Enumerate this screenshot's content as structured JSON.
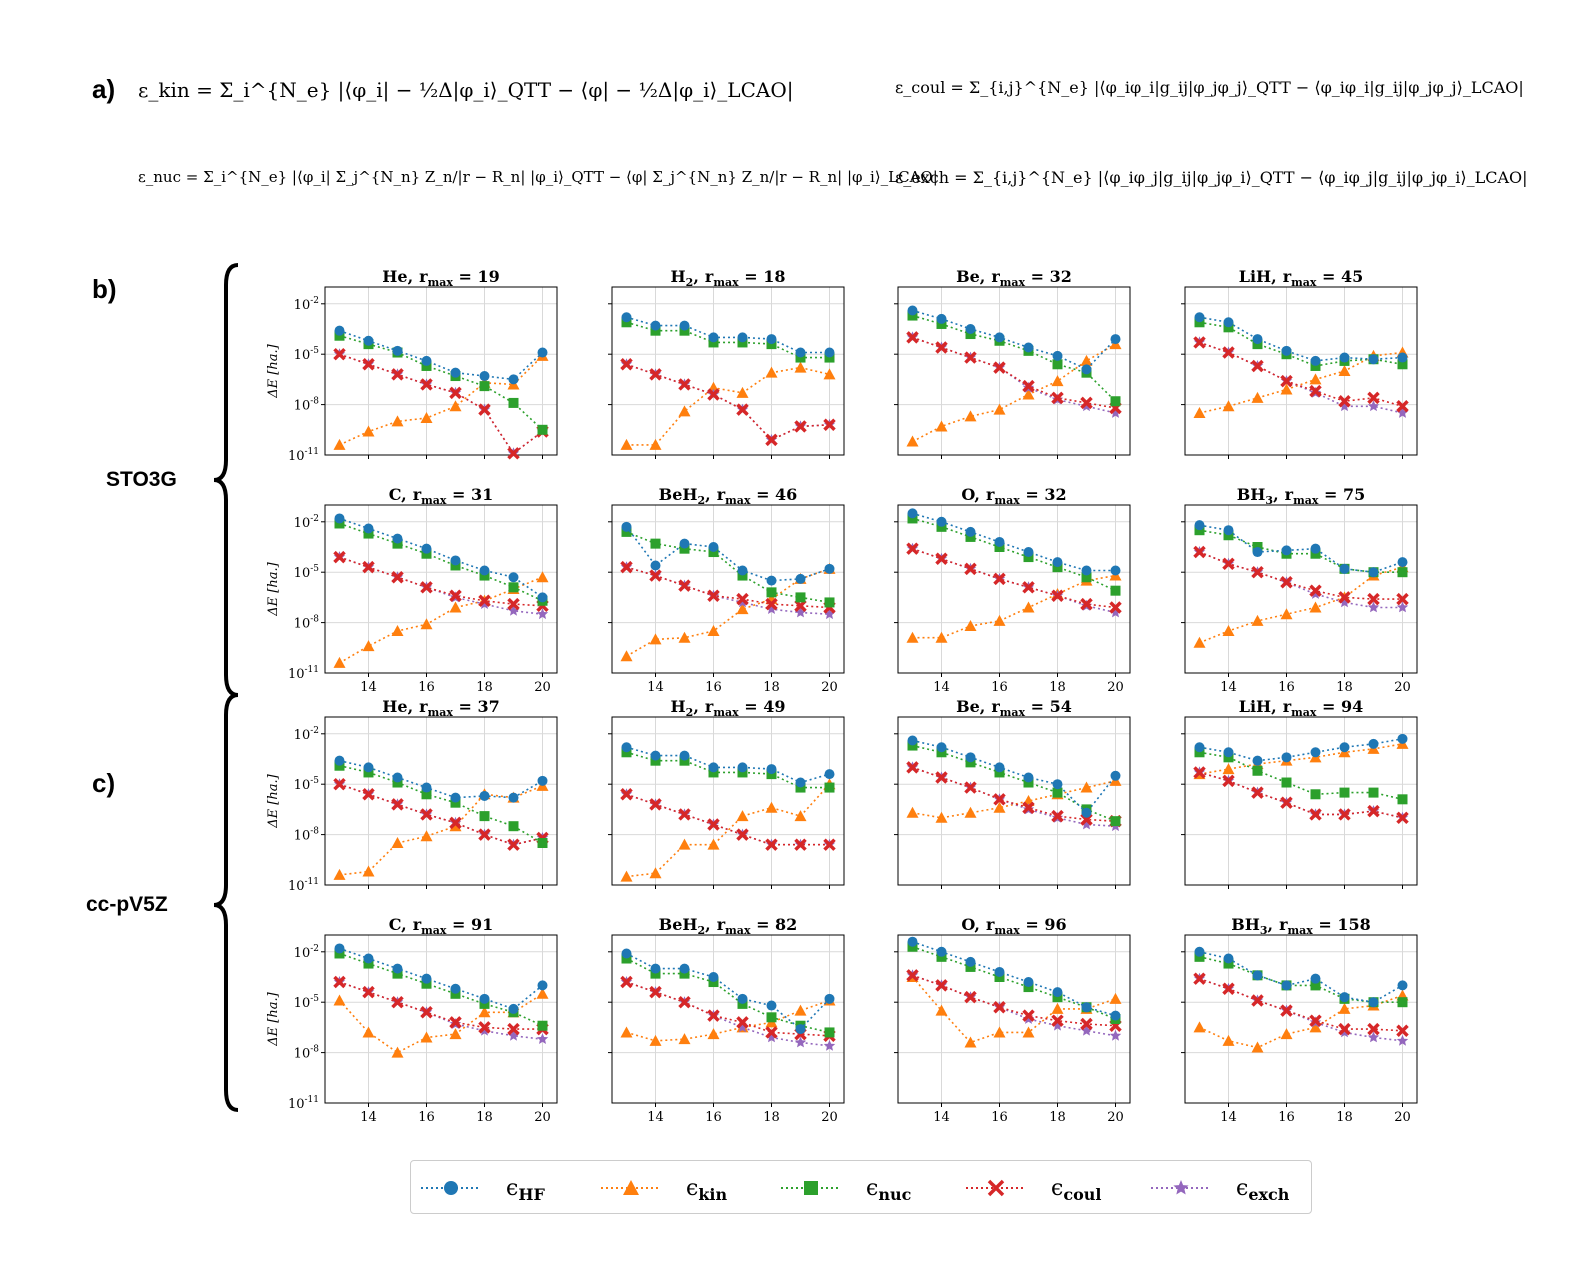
{
  "panel_labels": {
    "a": "a)",
    "b": "b)",
    "c": "c)"
  },
  "basis_sets": {
    "b": "STO3G",
    "c": "cc-pV5Z"
  },
  "equations": {
    "kin": "ε_kin = Σ_i^{N_e} |⟨φ_i| − ½Δ|φ_i⟩_QTT − ⟨φ| − ½Δ|φ_i⟩_LCAO|",
    "coul": "ε_coul = Σ_{i,j}^{N_e} |⟨φ_iφ_i|g_ij|φ_jφ_j⟩_QTT − ⟨φ_iφ_i|g_ij|φ_jφ_j⟩_LCAO|",
    "nuc": "ε_nuc = Σ_i^{N_e} |⟨φ_i| Σ_j^{N_n} Z_n/|r − R_n| |φ_i⟩_QTT − ⟨φ| Σ_j^{N_n} Z_n/|r − R_n| |φ_i⟩_LCAO|",
    "exch": "ε_exch = Σ_{i,j}^{N_e} |⟨φ_iφ_j|g_ij|φ_jφ_i⟩_QTT − ⟨φ_iφ_j|g_ij|φ_jφ_i⟩_LCAO|"
  },
  "ylabel": "ΔE [ha.]",
  "legend": [
    {
      "key": "HF",
      "label": "ϵ",
      "sub": "HF",
      "color": "#1f77b4",
      "marker": "circle"
    },
    {
      "key": "kin",
      "label": "ϵ",
      "sub": "kin",
      "color": "#ff7f0e",
      "marker": "triangle"
    },
    {
      "key": "nuc",
      "label": "ϵ",
      "sub": "nuc",
      "color": "#2ca02c",
      "marker": "square"
    },
    {
      "key": "coul",
      "label": "ϵ",
      "sub": "coul",
      "color": "#d62728",
      "marker": "x"
    },
    {
      "key": "exch",
      "label": "ϵ",
      "sub": "exch",
      "color": "#9467bd",
      "marker": "star"
    }
  ],
  "chart_data": [
    {
      "type": "line",
      "title": "He",
      "rmax": "19",
      "basis": "STO3G",
      "x": [
        13,
        14,
        15,
        16,
        17,
        18,
        19,
        20
      ],
      "ylim_exp": [
        -11,
        -1
      ],
      "series": {
        "HF": [
          -3.6,
          -4.2,
          -4.8,
          -5.4,
          -6.1,
          -6.3,
          -6.5,
          -4.9
        ],
        "kin": [
          -10.4,
          -9.6,
          -9.0,
          -8.8,
          -8.1,
          -6.7,
          -6.8,
          -5.1
        ],
        "nuc": [
          -3.9,
          -4.4,
          -4.9,
          -5.7,
          -6.3,
          -6.9,
          -7.9,
          -9.5
        ],
        "coul": [
          -5.0,
          -5.6,
          -6.2,
          -6.8,
          -7.3,
          -8.3,
          -10.9,
          -9.6
        ],
        "exch": [
          -5.0,
          -5.6,
          -6.2,
          -6.8,
          -7.3,
          -8.3,
          -10.9,
          -9.6
        ]
      }
    },
    {
      "type": "line",
      "title": "H",
      "sub": "2",
      "rmax": "18",
      "basis": "STO3G",
      "x": [
        13,
        14,
        15,
        16,
        17,
        18,
        19,
        20
      ],
      "ylim_exp": [
        -11,
        -1
      ],
      "series": {
        "HF": [
          -2.8,
          -3.3,
          -3.3,
          -4.0,
          -4.0,
          -4.1,
          -4.9,
          -4.9
        ],
        "kin": [
          -10.4,
          -10.4,
          -8.4,
          -7.0,
          -7.3,
          -6.1,
          -5.8,
          -6.2
        ],
        "nuc": [
          -3.1,
          -3.6,
          -3.6,
          -4.3,
          -4.3,
          -4.4,
          -5.2,
          -5.2
        ],
        "coul": [
          -5.6,
          -6.2,
          -6.8,
          -7.4,
          -8.3,
          -10.1,
          -9.3,
          -9.2
        ],
        "exch": [
          -5.6,
          -6.2,
          -6.8,
          -7.4,
          -8.3,
          -10.1,
          -9.3,
          -9.2
        ]
      }
    },
    {
      "type": "line",
      "title": "Be",
      "rmax": "32",
      "basis": "STO3G",
      "x": [
        13,
        14,
        15,
        16,
        17,
        18,
        19,
        20
      ],
      "ylim_exp": [
        -11,
        -1
      ],
      "series": {
        "HF": [
          -2.4,
          -2.9,
          -3.5,
          -4.0,
          -4.6,
          -5.1,
          -5.9,
          -4.1
        ],
        "kin": [
          -10.2,
          -9.3,
          -8.7,
          -8.3,
          -7.4,
          -6.6,
          -5.4,
          -4.4
        ],
        "nuc": [
          -2.7,
          -3.2,
          -3.8,
          -4.2,
          -4.8,
          -5.6,
          -6.1,
          -7.8
        ],
        "coul": [
          -4.0,
          -4.6,
          -5.2,
          -5.8,
          -6.9,
          -7.6,
          -7.9,
          -8.2
        ],
        "exch": [
          -4.0,
          -4.6,
          -5.2,
          -5.8,
          -7.0,
          -7.7,
          -8.1,
          -8.5
        ]
      }
    },
    {
      "type": "line",
      "title": "LiH",
      "rmax": "45",
      "basis": "STO3G",
      "x": [
        13,
        14,
        15,
        16,
        17,
        18,
        19,
        20
      ],
      "ylim_exp": [
        -11,
        -1
      ],
      "series": {
        "HF": [
          -2.8,
          -3.1,
          -4.1,
          -4.8,
          -5.4,
          -5.2,
          -5.3,
          -5.2
        ],
        "kin": [
          -8.5,
          -8.1,
          -7.6,
          -7.1,
          -6.5,
          -6.0,
          -5.1,
          -4.9
        ],
        "nuc": [
          -3.1,
          -3.4,
          -4.4,
          -5.0,
          -5.7,
          -5.4,
          -5.3,
          -5.6
        ],
        "coul": [
          -4.3,
          -4.9,
          -5.7,
          -6.6,
          -7.2,
          -7.8,
          -7.6,
          -8.1
        ],
        "exch": [
          -4.3,
          -4.9,
          -5.7,
          -6.6,
          -7.3,
          -8.1,
          -8.1,
          -8.5
        ]
      }
    },
    {
      "type": "line",
      "title": "C",
      "rmax": "31",
      "basis": "STO3G",
      "x": [
        13,
        14,
        15,
        16,
        17,
        18,
        19,
        20
      ],
      "ylim_exp": [
        -11,
        -1
      ],
      "series": {
        "HF": [
          -1.8,
          -2.4,
          -3.0,
          -3.6,
          -4.3,
          -4.9,
          -5.3,
          -6.5
        ],
        "kin": [
          -10.4,
          -9.4,
          -8.5,
          -8.1,
          -7.1,
          -6.7,
          -6.0,
          -5.3
        ],
        "nuc": [
          -2.1,
          -2.7,
          -3.3,
          -3.9,
          -4.6,
          -5.2,
          -5.9,
          -6.7
        ],
        "coul": [
          -4.1,
          -4.7,
          -5.3,
          -5.9,
          -6.4,
          -6.7,
          -6.9,
          -7.0
        ],
        "exch": [
          -4.1,
          -4.7,
          -5.3,
          -5.9,
          -6.5,
          -6.9,
          -7.3,
          -7.5
        ]
      }
    },
    {
      "type": "line",
      "title": "BeH",
      "sub": "2",
      "rmax": "46",
      "basis": "STO3G",
      "x": [
        13,
        14,
        15,
        16,
        17,
        18,
        19,
        20
      ],
      "ylim_exp": [
        -11,
        -1
      ],
      "series": {
        "HF": [
          -2.3,
          -4.6,
          -3.3,
          -3.5,
          -4.9,
          -5.5,
          -5.4,
          -4.8
        ],
        "kin": [
          -10.0,
          -9.0,
          -8.9,
          -8.5,
          -7.2,
          -6.6,
          -5.4,
          -4.8
        ],
        "nuc": [
          -2.6,
          -3.3,
          -3.6,
          -3.8,
          -5.2,
          -6.2,
          -6.5,
          -6.8
        ],
        "coul": [
          -4.7,
          -5.2,
          -5.8,
          -6.4,
          -6.6,
          -6.9,
          -7.0,
          -7.1
        ],
        "exch": [
          -4.7,
          -5.2,
          -5.8,
          -6.4,
          -6.8,
          -7.2,
          -7.4,
          -7.5
        ]
      }
    },
    {
      "type": "line",
      "title": "O",
      "rmax": "32",
      "basis": "STO3G",
      "x": [
        13,
        14,
        15,
        16,
        17,
        18,
        19,
        20
      ],
      "ylim_exp": [
        -11,
        -1
      ],
      "series": {
        "HF": [
          -1.5,
          -2.0,
          -2.6,
          -3.2,
          -3.8,
          -4.4,
          -4.9,
          -4.9
        ],
        "kin": [
          -8.9,
          -8.9,
          -8.2,
          -7.9,
          -7.1,
          -6.3,
          -5.5,
          -5.2
        ],
        "nuc": [
          -1.8,
          -2.3,
          -2.9,
          -3.5,
          -4.1,
          -4.7,
          -5.3,
          -6.1
        ],
        "coul": [
          -3.6,
          -4.2,
          -4.8,
          -5.4,
          -5.9,
          -6.4,
          -6.9,
          -7.1
        ],
        "exch": [
          -3.6,
          -4.2,
          -4.8,
          -5.4,
          -5.9,
          -6.4,
          -7.0,
          -7.4
        ]
      }
    },
    {
      "type": "line",
      "title": "BH",
      "sub": "3",
      "rmax": "75",
      "basis": "STO3G",
      "x": [
        13,
        14,
        15,
        16,
        17,
        18,
        19,
        20
      ],
      "ylim_exp": [
        -11,
        -1
      ],
      "series": {
        "HF": [
          -2.2,
          -2.5,
          -3.8,
          -3.7,
          -3.6,
          -4.8,
          -5.0,
          -4.4
        ],
        "kin": [
          -9.2,
          -8.5,
          -7.9,
          -7.5,
          -7.1,
          -6.5,
          -5.2,
          -4.7
        ],
        "nuc": [
          -2.5,
          -2.8,
          -3.5,
          -3.9,
          -3.9,
          -4.8,
          -5.0,
          -5.0
        ],
        "coul": [
          -3.8,
          -4.5,
          -5.0,
          -5.6,
          -6.1,
          -6.5,
          -6.6,
          -6.6
        ],
        "exch": [
          -3.8,
          -4.5,
          -5.0,
          -5.6,
          -6.3,
          -6.8,
          -7.1,
          -7.1
        ]
      }
    },
    {
      "type": "line",
      "title": "He",
      "rmax": "37",
      "basis": "cc-pV5Z",
      "x": [
        13,
        14,
        15,
        16,
        17,
        18,
        19,
        20
      ],
      "ylim_exp": [
        -11,
        -1
      ],
      "series": {
        "HF": [
          -3.6,
          -4.0,
          -4.6,
          -5.2,
          -5.8,
          -5.7,
          -5.8,
          -4.8
        ],
        "kin": [
          -10.4,
          -10.2,
          -8.5,
          -8.1,
          -7.5,
          -5.6,
          -5.8,
          -5.1
        ],
        "nuc": [
          -3.9,
          -4.3,
          -4.9,
          -5.6,
          -6.1,
          -6.9,
          -7.5,
          -8.5
        ],
        "coul": [
          -5.0,
          -5.6,
          -6.2,
          -6.8,
          -7.3,
          -8.0,
          -8.6,
          -8.2
        ],
        "exch": [
          -5.0,
          -5.6,
          -6.2,
          -6.8,
          -7.3,
          -8.0,
          -8.6,
          -8.2
        ]
      }
    },
    {
      "type": "line",
      "title": "H",
      "sub": "2",
      "rmax": "49",
      "basis": "cc-pV5Z",
      "x": [
        13,
        14,
        15,
        16,
        17,
        18,
        19,
        20
      ],
      "ylim_exp": [
        -11,
        -1
      ],
      "series": {
        "HF": [
          -2.8,
          -3.3,
          -3.3,
          -4.0,
          -4.0,
          -4.1,
          -4.9,
          -4.4
        ],
        "kin": [
          -10.5,
          -10.3,
          -8.6,
          -8.6,
          -6.9,
          -6.4,
          -6.9,
          -5.0
        ],
        "nuc": [
          -3.1,
          -3.6,
          -3.6,
          -4.3,
          -4.3,
          -4.4,
          -5.2,
          -5.2
        ],
        "coul": [
          -5.6,
          -6.2,
          -6.8,
          -7.4,
          -8.0,
          -8.6,
          -8.6,
          -8.6
        ],
        "exch": [
          -5.6,
          -6.2,
          -6.8,
          -7.4,
          -8.0,
          -8.6,
          -8.6,
          -8.6
        ]
      }
    },
    {
      "type": "line",
      "title": "Be",
      "rmax": "54",
      "basis": "cc-pV5Z",
      "x": [
        13,
        14,
        15,
        16,
        17,
        18,
        19,
        20
      ],
      "ylim_exp": [
        -11,
        -1
      ],
      "series": {
        "HF": [
          -2.4,
          -2.8,
          -3.4,
          -4.0,
          -4.6,
          -5.0,
          -6.7,
          -4.5
        ],
        "kin": [
          -6.7,
          -7.0,
          -6.7,
          -6.4,
          -6.0,
          -5.6,
          -5.2,
          -4.8
        ],
        "nuc": [
          -2.7,
          -3.1,
          -3.7,
          -4.3,
          -4.9,
          -5.5,
          -6.5,
          -7.2
        ],
        "coul": [
          -4.0,
          -4.6,
          -5.2,
          -5.9,
          -6.4,
          -6.9,
          -7.1,
          -7.2
        ],
        "exch": [
          -4.0,
          -4.6,
          -5.2,
          -5.9,
          -6.5,
          -7.0,
          -7.4,
          -7.5
        ]
      }
    },
    {
      "type": "line",
      "title": "LiH",
      "rmax": "94",
      "basis": "cc-pV5Z",
      "x": [
        13,
        14,
        15,
        16,
        17,
        18,
        19,
        20
      ],
      "ylim_exp": [
        -11,
        -1
      ],
      "series": {
        "HF": [
          -2.8,
          -3.1,
          -3.6,
          -3.4,
          -3.1,
          -2.8,
          -2.6,
          -2.3
        ],
        "kin": [
          -4.4,
          -4.1,
          -3.8,
          -3.6,
          -3.4,
          -3.1,
          -2.9,
          -2.6
        ],
        "nuc": [
          -3.1,
          -3.4,
          -4.2,
          -4.9,
          -5.6,
          -5.5,
          -5.5,
          -5.9
        ],
        "coul": [
          -4.3,
          -4.8,
          -5.5,
          -6.1,
          -6.8,
          -6.8,
          -6.6,
          -7.0
        ],
        "exch": [
          -4.3,
          -4.8,
          -5.5,
          -6.1,
          -6.8,
          -6.8,
          -6.6,
          -7.0
        ]
      }
    },
    {
      "type": "line",
      "title": "C",
      "rmax": "91",
      "basis": "cc-pV5Z",
      "x": [
        13,
        14,
        15,
        16,
        17,
        18,
        19,
        20
      ],
      "ylim_exp": [
        -11,
        -1
      ],
      "series": {
        "HF": [
          -1.8,
          -2.4,
          -3.0,
          -3.6,
          -4.2,
          -4.8,
          -5.4,
          -4.0
        ],
        "kin": [
          -4.9,
          -6.8,
          -8.0,
          -7.1,
          -6.9,
          -5.6,
          -5.6,
          -4.5
        ],
        "nuc": [
          -2.1,
          -2.7,
          -3.3,
          -3.9,
          -4.5,
          -5.1,
          -5.6,
          -6.4
        ],
        "coul": [
          -3.8,
          -4.4,
          -5.0,
          -5.6,
          -6.2,
          -6.5,
          -6.6,
          -6.6
        ],
        "exch": [
          -3.8,
          -4.4,
          -5.0,
          -5.6,
          -6.3,
          -6.7,
          -7.0,
          -7.2
        ]
      }
    },
    {
      "type": "line",
      "title": "BeH",
      "sub": "2",
      "rmax": "82",
      "basis": "cc-pV5Z",
      "x": [
        13,
        14,
        15,
        16,
        17,
        18,
        19,
        20
      ],
      "ylim_exp": [
        -11,
        -1
      ],
      "series": {
        "HF": [
          -2.1,
          -3.0,
          -3.0,
          -3.5,
          -4.8,
          -5.2,
          -6.6,
          -4.8
        ],
        "kin": [
          -6.8,
          -7.3,
          -7.2,
          -6.9,
          -6.5,
          -6.2,
          -5.5,
          -4.9
        ],
        "nuc": [
          -2.4,
          -3.3,
          -3.3,
          -3.8,
          -5.1,
          -5.9,
          -6.4,
          -6.8
        ],
        "coul": [
          -3.8,
          -4.4,
          -5.0,
          -5.8,
          -6.2,
          -6.8,
          -6.9,
          -7.0
        ],
        "exch": [
          -3.8,
          -4.4,
          -5.0,
          -5.8,
          -6.5,
          -7.1,
          -7.4,
          -7.6
        ]
      }
    },
    {
      "type": "line",
      "title": "O",
      "rmax": "96",
      "basis": "cc-pV5Z",
      "x": [
        13,
        14,
        15,
        16,
        17,
        18,
        19,
        20
      ],
      "ylim_exp": [
        -11,
        -1
      ],
      "series": {
        "HF": [
          -1.4,
          -2.0,
          -2.6,
          -3.2,
          -3.8,
          -4.4,
          -5.3,
          -5.8
        ],
        "kin": [
          -3.5,
          -5.5,
          -7.4,
          -6.8,
          -6.8,
          -5.4,
          -5.4,
          -4.8
        ],
        "nuc": [
          -1.7,
          -2.3,
          -2.9,
          -3.5,
          -4.1,
          -4.7,
          -5.3,
          -6.0
        ],
        "coul": [
          -3.4,
          -4.0,
          -4.7,
          -5.3,
          -5.8,
          -6.1,
          -6.3,
          -6.4
        ],
        "exch": [
          -3.4,
          -4.0,
          -4.7,
          -5.3,
          -6.0,
          -6.4,
          -6.7,
          -7.0
        ]
      }
    },
    {
      "type": "line",
      "title": "BH",
      "sub": "3",
      "rmax": "158",
      "basis": "cc-pV5Z",
      "x": [
        13,
        14,
        15,
        16,
        17,
        18,
        19,
        20
      ],
      "ylim_exp": [
        -11,
        -1
      ],
      "series": {
        "HF": [
          -2.0,
          -2.4,
          -3.4,
          -4.0,
          -3.6,
          -4.7,
          -5.0,
          -4.0
        ],
        "kin": [
          -6.5,
          -7.3,
          -7.7,
          -6.9,
          -6.5,
          -5.4,
          -5.2,
          -4.6
        ],
        "nuc": [
          -2.3,
          -2.7,
          -3.4,
          -4.0,
          -4.0,
          -4.8,
          -5.0,
          -5.0
        ],
        "coul": [
          -3.6,
          -4.2,
          -4.9,
          -5.5,
          -6.1,
          -6.6,
          -6.6,
          -6.7
        ],
        "exch": [
          -3.6,
          -4.2,
          -4.9,
          -5.5,
          -6.2,
          -6.8,
          -7.1,
          -7.3
        ]
      }
    }
  ]
}
